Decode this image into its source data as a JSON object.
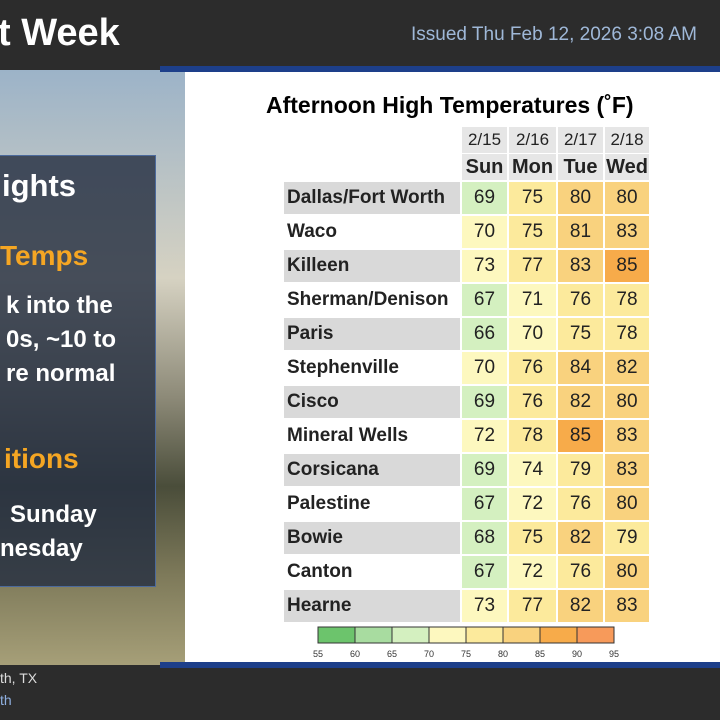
{
  "header": {
    "title": "t Week",
    "issued": "Issued Thu Feb 12, 2026 3:08 AM"
  },
  "left_panel": {
    "heading": "ights",
    "section1": {
      "title": "Temps",
      "lines": [
        "k into the",
        "0s, ~10 to",
        "re normal"
      ]
    },
    "section2": {
      "title": "itions",
      "lines": [
        "Sunday",
        "nesday"
      ]
    }
  },
  "footer": {
    "lines": [
      "th, TX",
      "th"
    ]
  },
  "table": {
    "title": "Afternoon High Temperatures (˚F)",
    "dates": [
      "2/15",
      "2/16",
      "2/17",
      "2/18"
    ],
    "days": [
      "Sun",
      "Mon",
      "Tue",
      "Wed"
    ],
    "rows": [
      {
        "city": "Dallas/Fort Worth",
        "values": [
          69,
          75,
          80,
          80
        ]
      },
      {
        "city": "Waco",
        "values": [
          70,
          75,
          81,
          83
        ]
      },
      {
        "city": "Killeen",
        "values": [
          73,
          77,
          83,
          85
        ]
      },
      {
        "city": "Sherman/Denison",
        "values": [
          67,
          71,
          76,
          78
        ]
      },
      {
        "city": "Paris",
        "values": [
          66,
          70,
          75,
          78
        ]
      },
      {
        "city": "Stephenville",
        "values": [
          70,
          76,
          84,
          82
        ]
      },
      {
        "city": "Cisco",
        "values": [
          69,
          76,
          82,
          80
        ]
      },
      {
        "city": "Mineral Wells",
        "values": [
          72,
          78,
          85,
          83
        ]
      },
      {
        "city": "Corsicana",
        "values": [
          69,
          74,
          79,
          83
        ]
      },
      {
        "city": "Palestine",
        "values": [
          67,
          72,
          76,
          80
        ]
      },
      {
        "city": "Bowie",
        "values": [
          68,
          75,
          82,
          79
        ]
      },
      {
        "city": "Canton",
        "values": [
          67,
          72,
          76,
          80
        ]
      },
      {
        "city": "Hearne",
        "values": [
          73,
          77,
          82,
          83
        ]
      }
    ],
    "legend": {
      "ticks": [
        55,
        60,
        65,
        70,
        75,
        80,
        85,
        90,
        95
      ],
      "colors": [
        "#6cc46c",
        "#a8dca0",
        "#d4f0c0",
        "#fdf8bf",
        "#fcea9c",
        "#f9d27e",
        "#f7ab4a",
        "#f79a5a"
      ]
    }
  }
}
